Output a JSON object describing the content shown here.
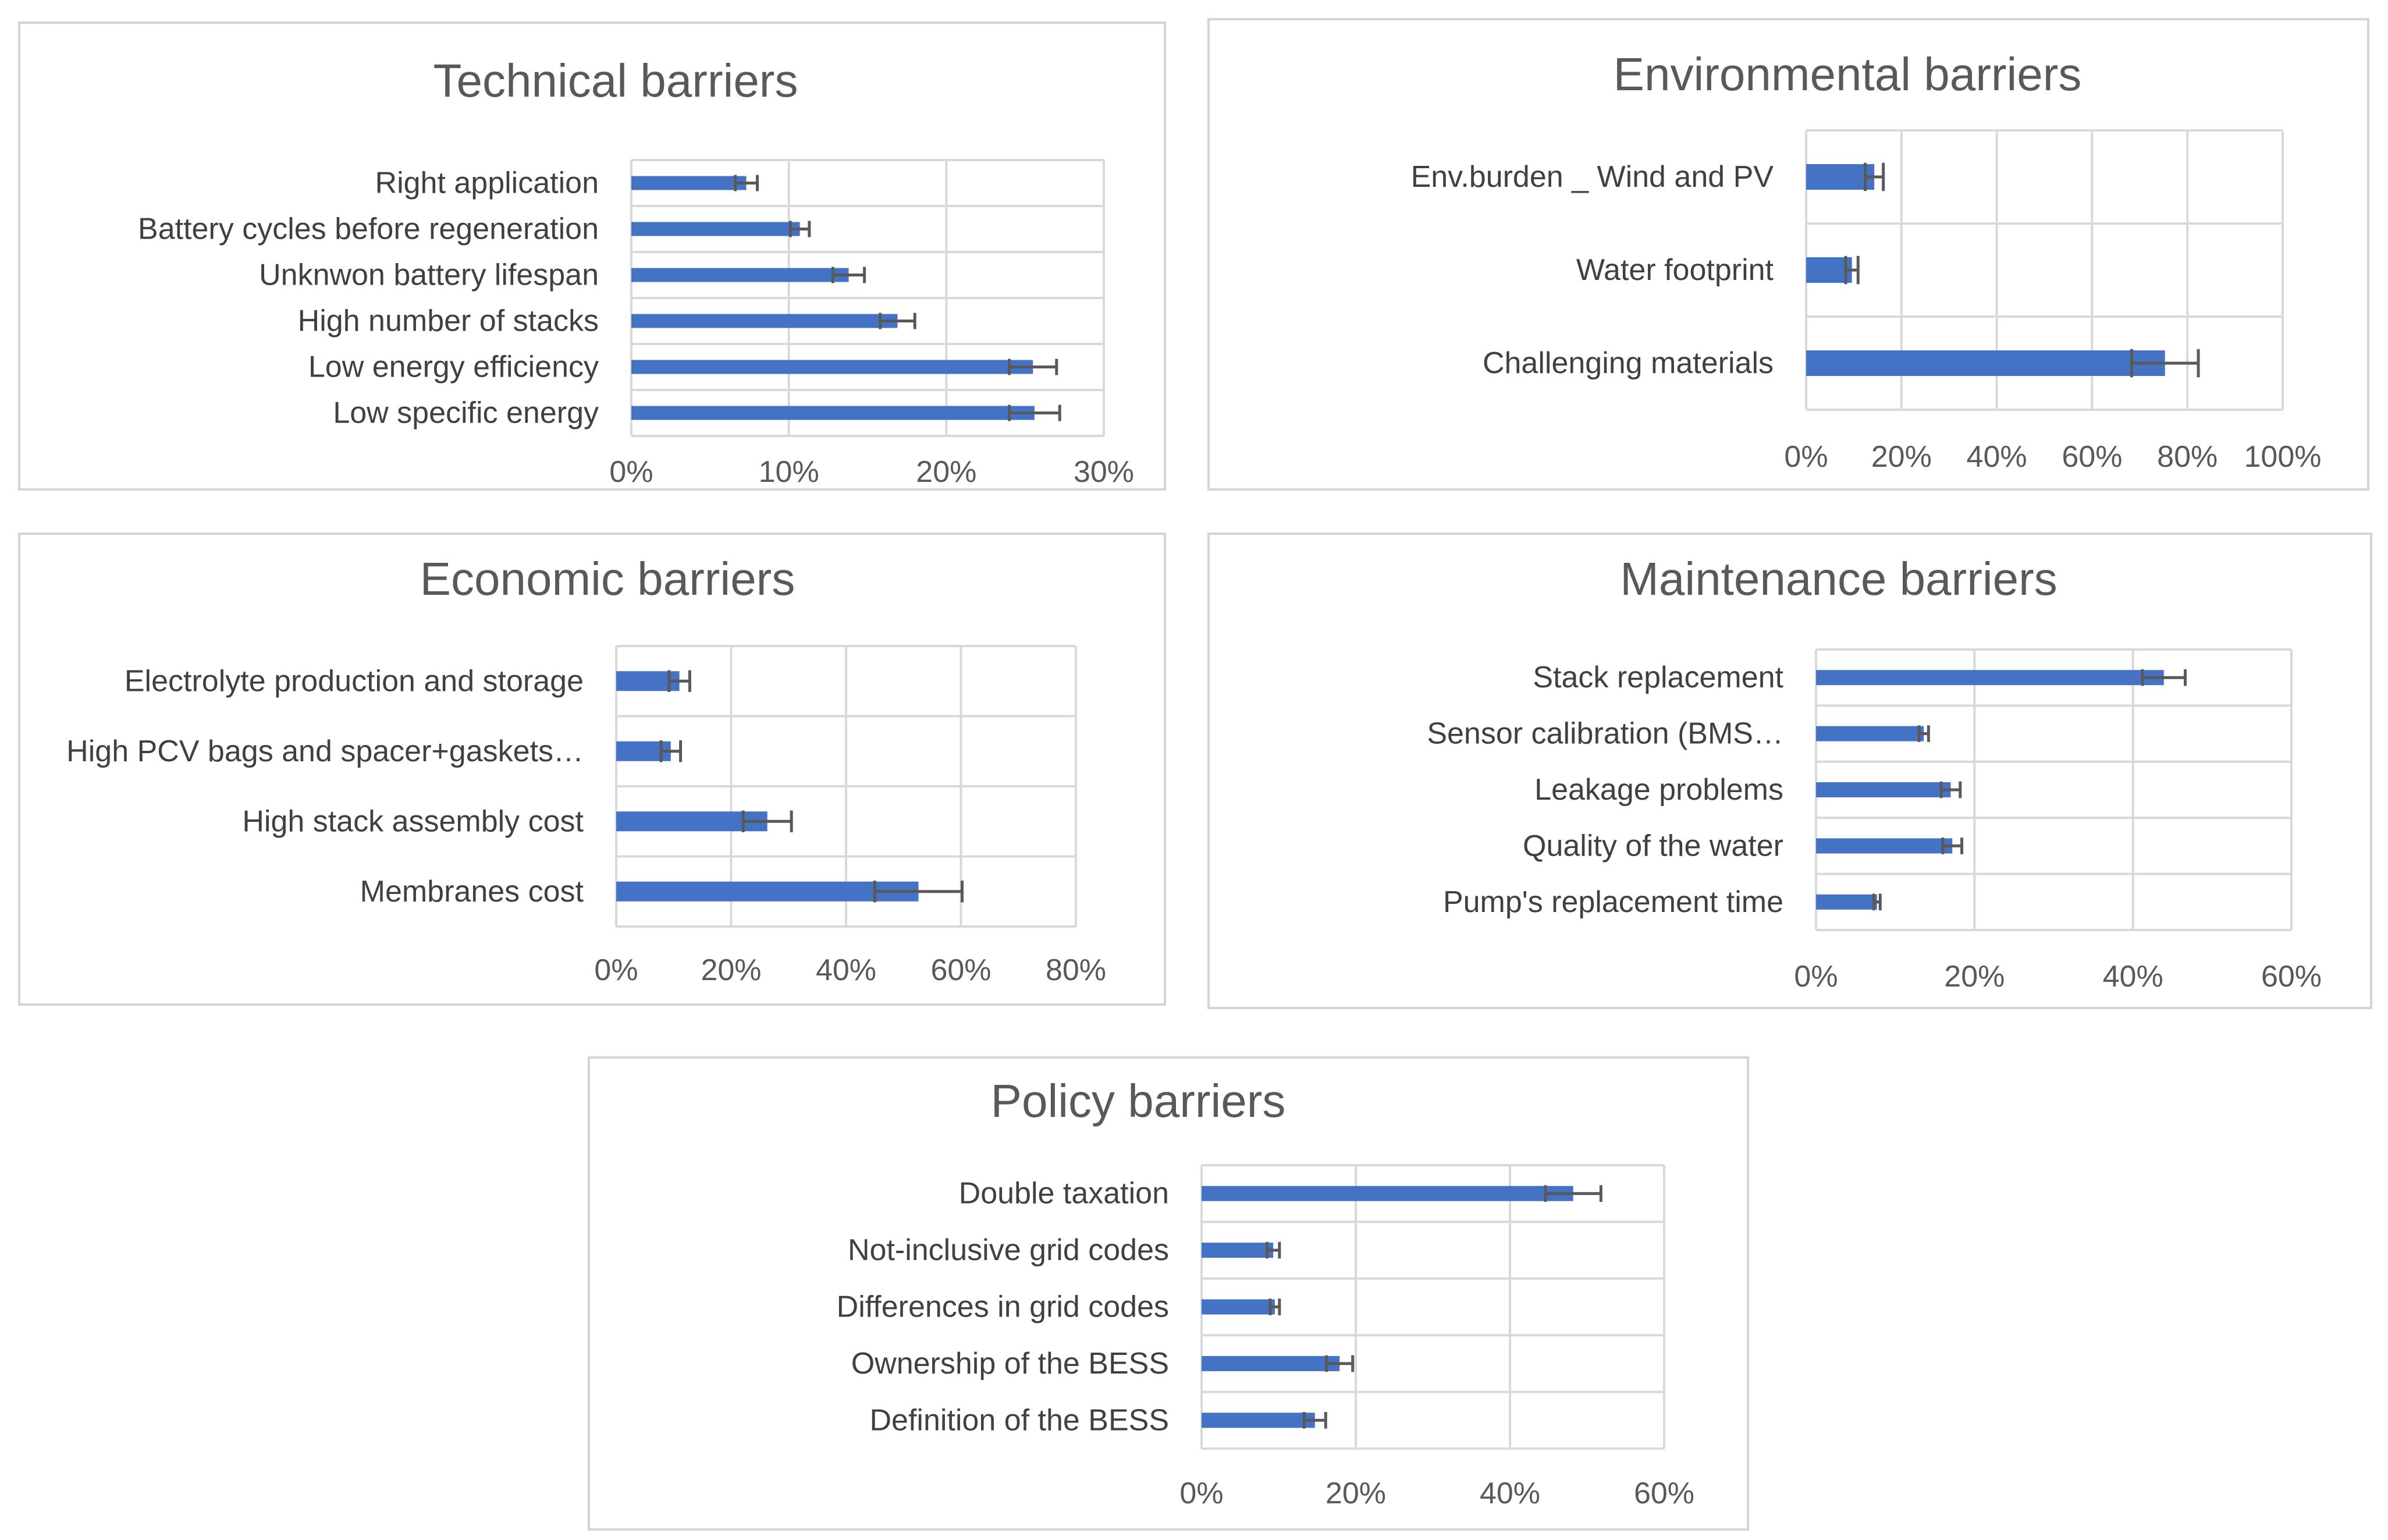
{
  "chart_data": [
    {
      "id": "technical",
      "type": "bar",
      "orientation": "horizontal",
      "title": "Technical barriers",
      "categories": [
        "Right application",
        "Battery cycles before regeneration",
        "Unknwon battery lifespan",
        "High number of stacks",
        "Low energy efficiency",
        "Low specific energy"
      ],
      "values": [
        7.3,
        10.7,
        13.8,
        16.9,
        25.5,
        25.6
      ],
      "errors": [
        0.7,
        0.6,
        1.0,
        1.1,
        1.5,
        1.6
      ],
      "xlim": [
        0,
        30
      ],
      "xticks": [
        "0%",
        "10%",
        "20%",
        "30%"
      ],
      "xlabel": "",
      "ylabel": ""
    },
    {
      "id": "environmental",
      "type": "bar",
      "orientation": "horizontal",
      "title": "Environmental barriers",
      "categories": [
        "Env.burden _ Wind and PV",
        "Water footprint",
        "Challenging materials"
      ],
      "values": [
        14.3,
        9.6,
        75.3
      ],
      "errors": [
        1.9,
        1.3,
        7.0
      ],
      "xlim": [
        0,
        100
      ],
      "xticks": [
        "0%",
        "20%",
        "40%",
        "60%",
        "80%",
        "100%"
      ],
      "xlabel": "",
      "ylabel": ""
    },
    {
      "id": "economic",
      "type": "bar",
      "orientation": "horizontal",
      "title": "Economic barriers",
      "categories": [
        "Electrolyte production and storage",
        "High PCV bags and spacer+gaskets…",
        "High stack assembly cost",
        "Membranes cost"
      ],
      "values": [
        11.0,
        9.5,
        26.3,
        52.6
      ],
      "errors": [
        1.8,
        1.7,
        4.2,
        7.6
      ],
      "xlim": [
        0,
        80
      ],
      "xticks": [
        "0%",
        "20%",
        "40%",
        "60%",
        "80%"
      ],
      "xlabel": "",
      "ylabel": ""
    },
    {
      "id": "maintenance",
      "type": "bar",
      "orientation": "horizontal",
      "title": "Maintenance barriers",
      "categories": [
        "Stack replacement",
        "Sensor calibration (BMS…",
        "Leakage problems",
        "Quality of the water",
        "Pump's replacement time"
      ],
      "values": [
        43.9,
        13.6,
        17.0,
        17.2,
        7.7
      ],
      "errors": [
        2.7,
        0.6,
        1.2,
        1.2,
        0.4
      ],
      "xlim": [
        0,
        60
      ],
      "xticks": [
        "0%",
        "20%",
        "40%",
        "60%"
      ],
      "xlabel": "",
      "ylabel": ""
    },
    {
      "id": "policy",
      "type": "bar",
      "orientation": "horizontal",
      "title": "Policy barriers",
      "categories": [
        "Double taxation",
        "Not-inclusive grid codes",
        "Differences in grid codes",
        "Ownership of the BESS",
        "Definition of the BESS"
      ],
      "values": [
        48.2,
        9.3,
        9.5,
        17.9,
        14.7
      ],
      "errors": [
        3.6,
        0.8,
        0.6,
        1.7,
        1.4
      ],
      "xlim": [
        0,
        60
      ],
      "xticks": [
        "0%",
        "20%",
        "40%",
        "60%"
      ],
      "xlabel": "",
      "ylabel": ""
    }
  ],
  "colors": {
    "bar": "#4472C4",
    "error_bar": "#595959",
    "grid": "#d9d9d9",
    "title": "#595959",
    "label": "#404040",
    "tick": "#595959"
  }
}
